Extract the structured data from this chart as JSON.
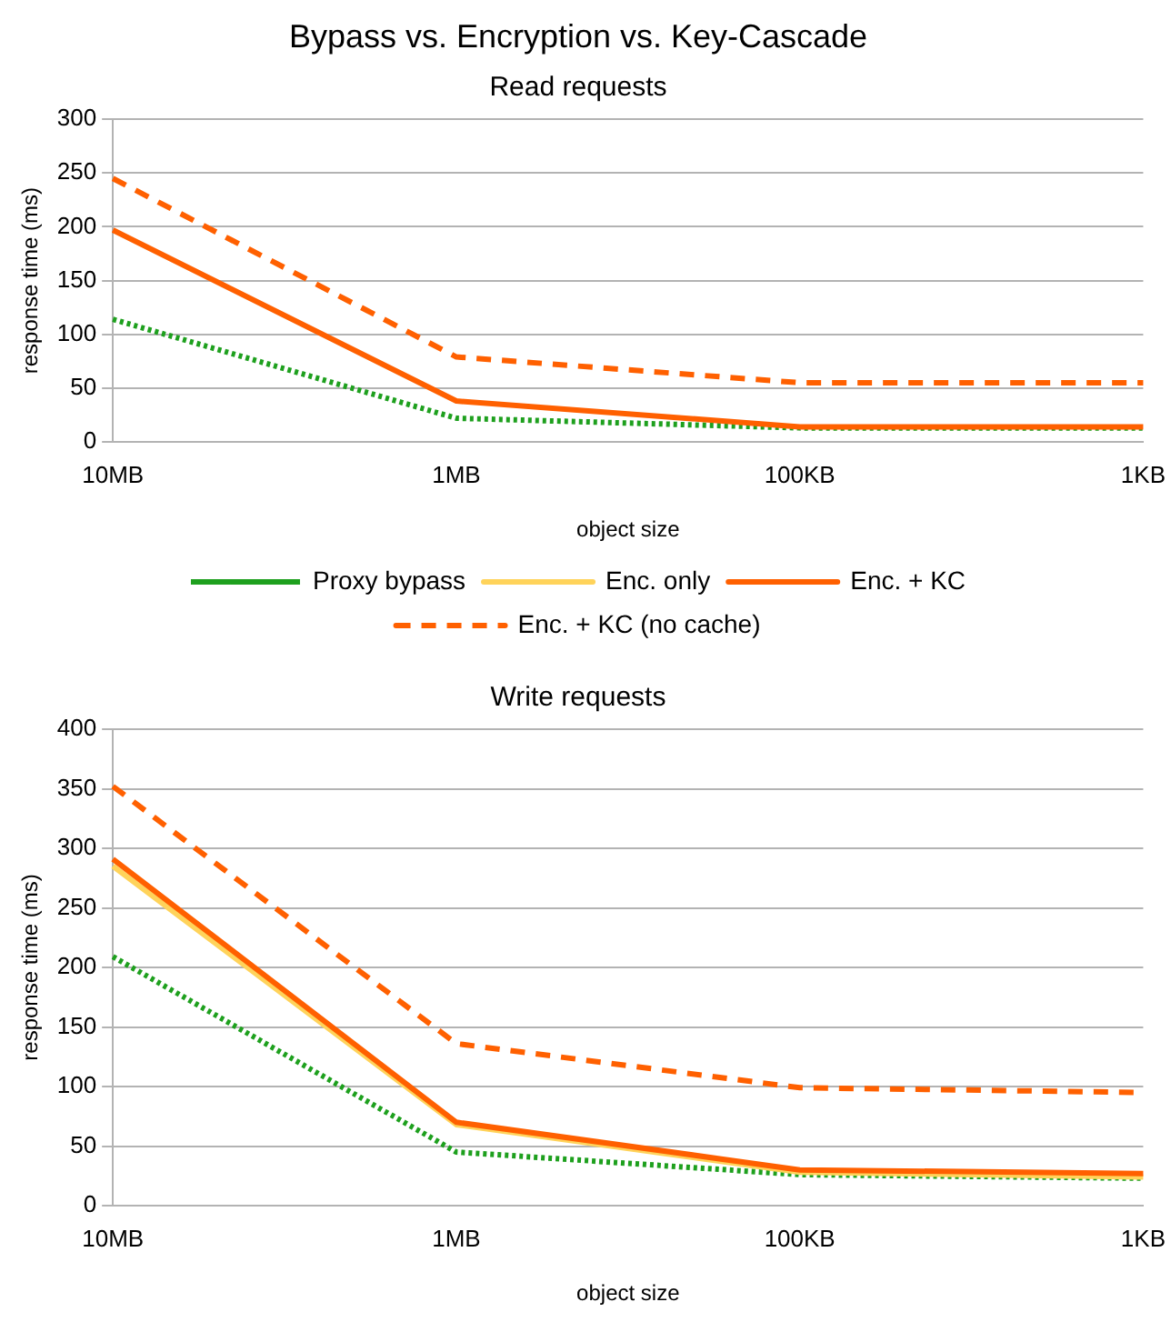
{
  "chart_data": [
    {
      "type": "line",
      "title": "Bypass vs. Encryption vs. Key-Cascade",
      "subtitle": "Read requests",
      "xlabel": "object size",
      "ylabel": "response time (ms)",
      "categories": [
        "10MB",
        "1MB",
        "100KB",
        "1KB"
      ],
      "ylim": [
        0,
        300
      ],
      "yticks": [
        0,
        50,
        100,
        150,
        200,
        250,
        300
      ],
      "grid": "y",
      "legend": "bottom",
      "marker": "none",
      "series": [
        {
          "name": "Proxy bypass",
          "color": "#1ea01e",
          "line_style": "dotted",
          "values": [
            114,
            22,
            13,
            13
          ]
        },
        {
          "name": "Enc. only",
          "color": "#ffd35a",
          "line_style": "solid",
          "values": [
            null,
            null,
            null,
            null
          ]
        },
        {
          "name": "Enc. + KC",
          "color": "#ff6000",
          "line_style": "solid",
          "values": [
            197,
            38,
            14,
            14
          ]
        },
        {
          "name": "Enc. + KC (no cache)",
          "color": "#ff6000",
          "line_style": "dashed",
          "values": [
            245,
            79,
            55,
            55
          ]
        }
      ]
    },
    {
      "type": "line",
      "title": "Write requests",
      "xlabel": "object size",
      "ylabel": "response time (ms)",
      "categories": [
        "10MB",
        "1MB",
        "100KB",
        "1KB"
      ],
      "ylim": [
        0,
        400
      ],
      "yticks": [
        0,
        50,
        100,
        150,
        200,
        250,
        300,
        350,
        400
      ],
      "grid": "y",
      "marker": "none",
      "series": [
        {
          "color": "#1ea01e",
          "line_style": "dotted",
          "values": [
            209,
            45,
            26,
            23
          ]
        },
        {
          "color": "#ffd35a",
          "line_style": "solid",
          "values": [
            285,
            68,
            28,
            24
          ]
        },
        {
          "color": "#ff6000",
          "line_style": "solid",
          "values": [
            291,
            70,
            30,
            27
          ]
        },
        {
          "color": "#ff6000",
          "line_style": "dashed",
          "values": [
            352,
            136,
            99,
            95
          ]
        }
      ]
    }
  ]
}
